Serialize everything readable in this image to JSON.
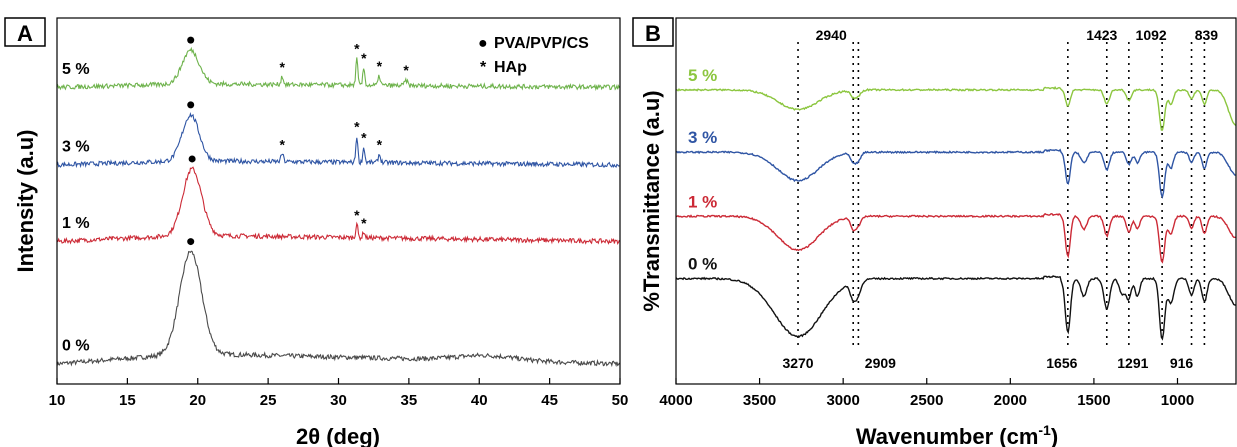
{
  "colors": {
    "c0": "#4a4a4a",
    "c1": "#cc2a36",
    "c3": "#2f55a4",
    "c5": "#6fb34d",
    "c5_ftir": "#8cc63f",
    "c0_ftir": "#111111",
    "axis": "#000000"
  },
  "chart_data": [
    {
      "panel": "A",
      "type": "line",
      "xlabel": "2θ (deg)",
      "ylabel": "Intensity (a.u)",
      "xlim": [
        10,
        50
      ],
      "xticks": [
        "10",
        "15",
        "20",
        "25",
        "30",
        "35",
        "40",
        "45",
        "50"
      ],
      "legend": [
        {
          "marker": "●",
          "label": "PVA/PVP/CS"
        },
        {
          "marker": "*",
          "label": "HAp"
        }
      ],
      "legend_position": "top-right",
      "series": [
        {
          "name": "0 %",
          "offset": 0,
          "baseline": 1.1,
          "peaks": [
            {
              "x": 19.5,
              "h": 10.0,
              "w": 1.1
            },
            {
              "x": 40.5,
              "h": 0.5,
              "w": 3
            }
          ],
          "decay_from": 19.5,
          "decay_to": 50,
          "decay_drop": 1.0,
          "dots": [
            19.5
          ],
          "stars": []
        },
        {
          "name": "1 %",
          "offset": 11.8,
          "baseline": 1.3,
          "peaks": [
            {
              "x": 19.6,
              "h": 6.5,
              "w": 0.95
            },
            {
              "x": 31.3,
              "h": 1.4,
              "w": 0.1
            },
            {
              "x": 31.8,
              "h": 0.6,
              "w": 0.1
            }
          ],
          "decay_from": 19.6,
          "decay_to": 50,
          "decay_drop": 0.6,
          "dots": [
            19.6
          ],
          "stars": [
            31.3,
            31.8
          ]
        },
        {
          "name": "3 %",
          "offset": 19.7,
          "baseline": 0.9,
          "peaks": [
            {
              "x": 19.5,
              "h": 4.5,
              "w": 0.85
            },
            {
              "x": 26.0,
              "h": 0.8,
              "w": 0.12
            },
            {
              "x": 31.3,
              "h": 2.6,
              "w": 0.1
            },
            {
              "x": 31.8,
              "h": 1.5,
              "w": 0.1
            },
            {
              "x": 32.9,
              "h": 0.8,
              "w": 0.12
            }
          ],
          "decay_from": 19.5,
          "decay_to": 50,
          "decay_drop": 0.4,
          "dots": [
            19.5
          ],
          "stars": [
            26.0,
            31.3,
            31.8,
            32.9
          ]
        },
        {
          "name": "5 %",
          "offset": 27.5,
          "baseline": 0.7,
          "peaks": [
            {
              "x": 19.5,
              "h": 3.3,
              "w": 0.85
            },
            {
              "x": 26.0,
              "h": 0.8,
              "w": 0.12
            },
            {
              "x": 31.3,
              "h": 2.6,
              "w": 0.1
            },
            {
              "x": 31.8,
              "h": 1.7,
              "w": 0.1
            },
            {
              "x": 32.9,
              "h": 0.9,
              "w": 0.12
            },
            {
              "x": 34.8,
              "h": 0.5,
              "w": 0.15
            }
          ],
          "decay_from": 19.5,
          "decay_to": 50,
          "decay_drop": 0.35,
          "dots": [
            19.5
          ],
          "stars": [
            26.0,
            31.3,
            31.8,
            32.9,
            34.8
          ]
        }
      ]
    },
    {
      "panel": "B",
      "type": "line",
      "xlabel": "Wavenumber (cm",
      "xlabel_sup": "-1",
      "xlabel_close": ")",
      "ylabel": "%Transmittance (a.u)",
      "xlim": [
        4000,
        650
      ],
      "xticks": [
        "4000",
        "3500",
        "3000",
        "2500",
        "2000",
        "1500",
        "1000"
      ],
      "peak_lines": [
        3270,
        2940,
        2909,
        1656,
        1423,
        1291,
        1092,
        916,
        839
      ],
      "labels_top": [
        "2940",
        "1423",
        "1092",
        "839"
      ],
      "labels_bottom": [
        "3270",
        "2909",
        "1656",
        "1291",
        "916"
      ],
      "series": [
        {
          "name": "0 %",
          "offset": 0,
          "base": 10.5,
          "bands": [
            {
              "x": 3270,
              "d": 6.5,
              "w": 200
            },
            {
              "x": 2940,
              "d": 1.8,
              "w": 25
            },
            {
              "x": 2909,
              "d": 1.4,
              "w": 25
            },
            {
              "x": 1656,
              "d": 6.0,
              "w": 22
            },
            {
              "x": 1560,
              "d": 2.0,
              "w": 25
            },
            {
              "x": 1423,
              "d": 3.4,
              "w": 25
            },
            {
              "x": 1330,
              "d": 1.8,
              "w": 25
            },
            {
              "x": 1291,
              "d": 2.2,
              "w": 20
            },
            {
              "x": 1240,
              "d": 2.0,
              "w": 20
            },
            {
              "x": 1092,
              "d": 6.8,
              "w": 22
            },
            {
              "x": 1040,
              "d": 2.8,
              "w": 25
            },
            {
              "x": 916,
              "d": 1.8,
              "w": 22
            },
            {
              "x": 839,
              "d": 2.6,
              "w": 22
            },
            {
              "x": 650,
              "d": 3.0,
              "w": 60
            }
          ]
        },
        {
          "name": "1 %",
          "offset": 7,
          "base": 10.5,
          "bands": [
            {
              "x": 3270,
              "d": 3.8,
              "w": 170
            },
            {
              "x": 2940,
              "d": 1.3,
              "w": 22
            },
            {
              "x": 2909,
              "d": 1.0,
              "w": 22
            },
            {
              "x": 1656,
              "d": 4.5,
              "w": 20
            },
            {
              "x": 1560,
              "d": 1.5,
              "w": 25
            },
            {
              "x": 1423,
              "d": 2.2,
              "w": 22
            },
            {
              "x": 1291,
              "d": 1.8,
              "w": 20
            },
            {
              "x": 1240,
              "d": 1.4,
              "w": 20
            },
            {
              "x": 1092,
              "d": 5.2,
              "w": 22
            },
            {
              "x": 1040,
              "d": 2.0,
              "w": 22
            },
            {
              "x": 916,
              "d": 1.3,
              "w": 20
            },
            {
              "x": 839,
              "d": 2.0,
              "w": 20
            },
            {
              "x": 650,
              "d": 2.4,
              "w": 60
            }
          ]
        },
        {
          "name": "3 %",
          "offset": 14.2,
          "base": 10.5,
          "bands": [
            {
              "x": 3270,
              "d": 3.2,
              "w": 170
            },
            {
              "x": 2940,
              "d": 1.1,
              "w": 22
            },
            {
              "x": 2909,
              "d": 0.9,
              "w": 22
            },
            {
              "x": 1656,
              "d": 3.6,
              "w": 20
            },
            {
              "x": 1560,
              "d": 1.2,
              "w": 25
            },
            {
              "x": 1423,
              "d": 2.0,
              "w": 22
            },
            {
              "x": 1291,
              "d": 1.4,
              "w": 20
            },
            {
              "x": 1240,
              "d": 1.2,
              "w": 20
            },
            {
              "x": 1092,
              "d": 5.0,
              "w": 22
            },
            {
              "x": 1040,
              "d": 1.8,
              "w": 22
            },
            {
              "x": 916,
              "d": 1.1,
              "w": 20
            },
            {
              "x": 839,
              "d": 1.8,
              "w": 20
            },
            {
              "x": 650,
              "d": 2.6,
              "w": 60
            }
          ]
        },
        {
          "name": "5 %",
          "offset": 21.2,
          "base": 10.5,
          "bands": [
            {
              "x": 3270,
              "d": 2.2,
              "w": 170
            },
            {
              "x": 2940,
              "d": 0.8,
              "w": 22
            },
            {
              "x": 2909,
              "d": 0.6,
              "w": 22
            },
            {
              "x": 1656,
              "d": 1.8,
              "w": 20
            },
            {
              "x": 1423,
              "d": 1.6,
              "w": 22
            },
            {
              "x": 1291,
              "d": 1.2,
              "w": 20
            },
            {
              "x": 1092,
              "d": 4.6,
              "w": 22
            },
            {
              "x": 1040,
              "d": 1.6,
              "w": 22
            },
            {
              "x": 916,
              "d": 1.0,
              "w": 20
            },
            {
              "x": 839,
              "d": 1.6,
              "w": 20
            },
            {
              "x": 650,
              "d": 4.0,
              "w": 60
            }
          ]
        }
      ]
    }
  ]
}
